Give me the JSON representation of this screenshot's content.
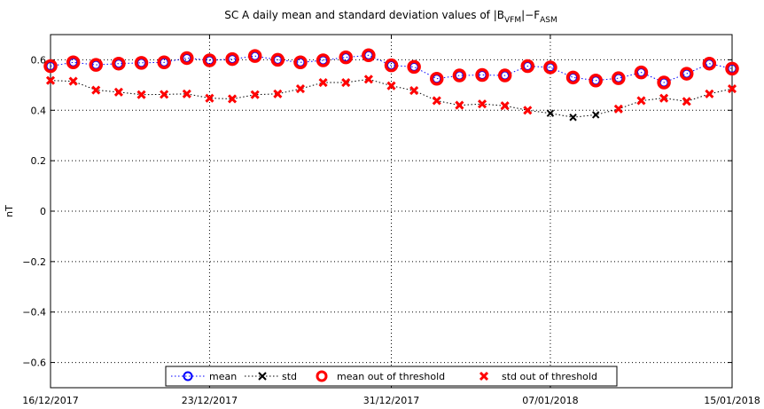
{
  "chart_data": {
    "type": "scatter",
    "title": {
      "prefix": "SC A daily mean and standard deviation values of |B",
      "sub1": "VFM",
      "middle": "|−F",
      "sub2": "ASM"
    },
    "xlabel": "",
    "ylabel": "nT",
    "ylim": [
      -0.7,
      0.7
    ],
    "xlim": [
      "16/12/2017",
      "15/01/2018"
    ],
    "y_ticks": [
      -0.6,
      -0.4,
      -0.2,
      0,
      0.2,
      0.4,
      0.6
    ],
    "y_tick_labels": [
      "−0.6",
      "−0.4",
      "−0.2",
      "0",
      "0.2",
      "0.4",
      "0.6"
    ],
    "x_ticks": [
      "16/12/2017",
      "23/12/2017",
      "31/12/2017",
      "07/01/2018",
      "15/01/2018"
    ],
    "grid": true,
    "dates": [
      "16/12/2017",
      "17/12/2017",
      "18/12/2017",
      "19/12/2017",
      "20/12/2017",
      "21/12/2017",
      "22/12/2017",
      "23/12/2017",
      "24/12/2017",
      "25/12/2017",
      "26/12/2017",
      "27/12/2017",
      "28/12/2017",
      "29/12/2017",
      "30/12/2017",
      "31/12/2017",
      "01/01/2018",
      "02/01/2018",
      "03/01/2018",
      "04/01/2018",
      "05/01/2018",
      "06/01/2018",
      "07/01/2018",
      "08/01/2018",
      "09/01/2018",
      "10/01/2018",
      "11/01/2018",
      "12/01/2018",
      "13/01/2018",
      "14/01/2018",
      "15/01/2018"
    ],
    "series": [
      {
        "name": "mean",
        "color": "#0000ff",
        "marker": "circle",
        "line": "dotted",
        "values": [
          0.575,
          0.59,
          0.58,
          0.585,
          0.588,
          0.59,
          0.607,
          0.598,
          0.603,
          0.615,
          0.6,
          0.59,
          0.598,
          0.61,
          0.618,
          0.578,
          0.572,
          0.525,
          0.538,
          0.54,
          0.538,
          0.575,
          0.57,
          0.53,
          0.518,
          0.527,
          0.55,
          0.51,
          0.545,
          0.585,
          0.565
        ]
      },
      {
        "name": "std",
        "color": "#000000",
        "marker": "x",
        "line": "dotted",
        "values": [
          0.518,
          0.515,
          0.48,
          0.472,
          0.462,
          0.463,
          0.465,
          0.448,
          0.445,
          0.462,
          0.465,
          0.485,
          0.51,
          0.51,
          0.523,
          0.497,
          0.478,
          0.438,
          0.42,
          0.425,
          0.418,
          0.4,
          0.388,
          0.372,
          0.382,
          0.405,
          0.438,
          0.448,
          0.435,
          0.465,
          0.485
        ]
      },
      {
        "name": "mean out of threshold",
        "color": "#ff0000",
        "marker": "circle-thick",
        "line": "none",
        "indices": [
          0,
          1,
          2,
          3,
          4,
          5,
          6,
          7,
          8,
          9,
          10,
          11,
          12,
          13,
          14,
          15,
          16,
          17,
          18,
          19,
          20,
          21,
          22,
          23,
          24,
          25,
          26,
          27,
          28,
          29,
          30
        ]
      },
      {
        "name": "std out of threshold",
        "color": "#ff0000",
        "marker": "x-thick",
        "line": "none",
        "indices": [
          0,
          1,
          2,
          3,
          4,
          5,
          6,
          7,
          8,
          9,
          10,
          11,
          12,
          13,
          14,
          15,
          16,
          17,
          18,
          19,
          20,
          21,
          25,
          26,
          27,
          28,
          29,
          30
        ]
      }
    ],
    "legend": {
      "placement": "bottom-center",
      "entries": [
        "mean",
        "std",
        "mean out of threshold",
        "std out of threshold"
      ]
    }
  }
}
